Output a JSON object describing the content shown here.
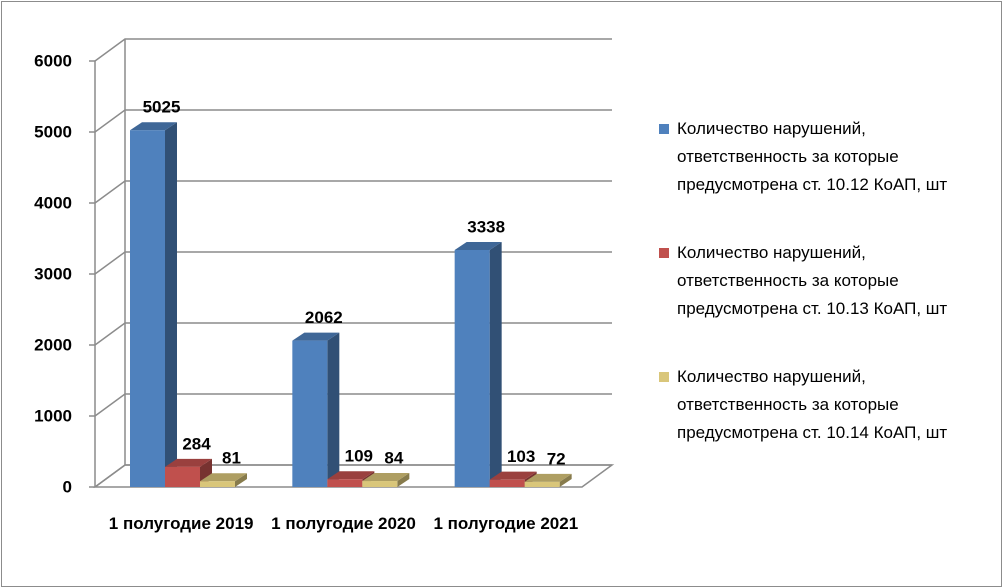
{
  "chart_data": {
    "type": "bar3d",
    "categories": [
      "1 полугодие 2019",
      "1 полугодие 2020",
      "1 полугодие 2021"
    ],
    "series": [
      {
        "name": "Количество нарушений, ответственность за которые предусмотрена ст. 10.12 КоАП, шт",
        "color": "#4f81bd",
        "values": [
          5025,
          2062,
          3338
        ]
      },
      {
        "name": "Количество нарушений, ответственность за которые предусмотрена ст. 10.13 КоАП, шт",
        "color": "#c0504d",
        "values": [
          284,
          109,
          103
        ]
      },
      {
        "name": "Количество нарушений, ответственность за которые предусмотрена ст. 10.14 КоАП, шт",
        "color": "#d9c67a",
        "values": [
          81,
          84,
          72
        ]
      }
    ],
    "ylim": [
      0,
      6000
    ],
    "yticks": [
      0,
      1000,
      2000,
      3000,
      4000,
      5000,
      6000
    ],
    "grid": true,
    "legend": "right"
  }
}
